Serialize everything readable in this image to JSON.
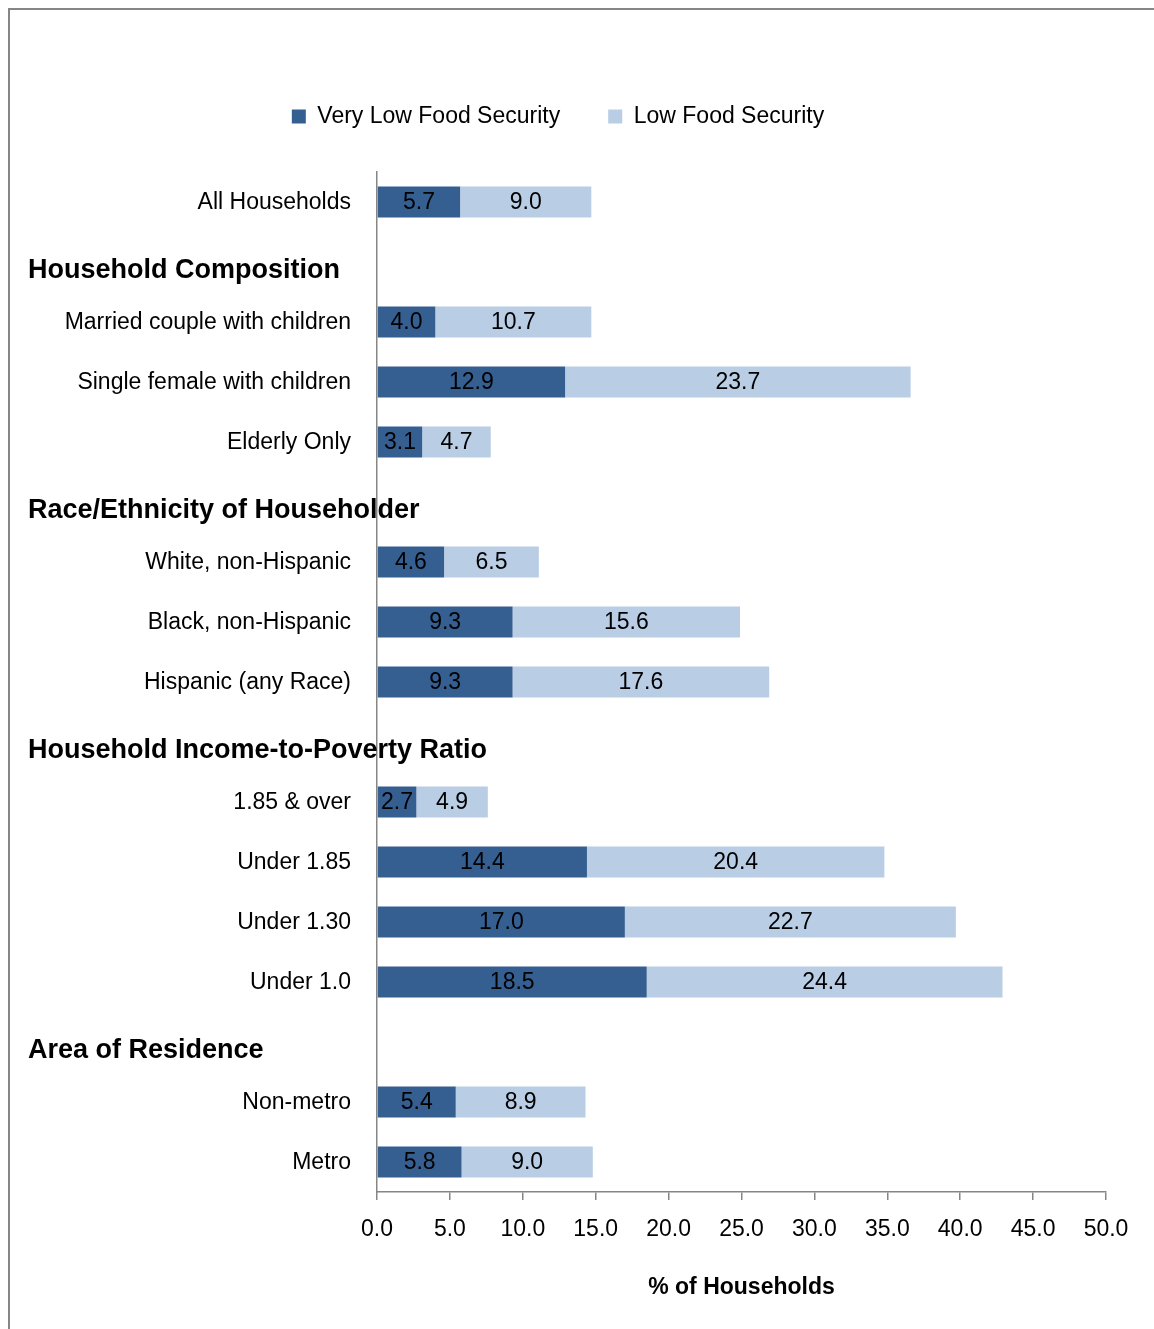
{
  "chart_data": {
    "type": "bar",
    "orientation": "horizontal",
    "stacked": true,
    "categories": [
      "All Households",
      null,
      "Married couple with children",
      "Single female with children",
      "Elderly Only",
      null,
      "White, non-Hispanic",
      "Black, non-Hispanic",
      "Hispanic (any Race)",
      null,
      "1.85 & over",
      "Under 1.85",
      "Under 1.30",
      "Under 1.0",
      null,
      "Non-metro",
      "Metro"
    ],
    "annotations": [
      "Household Composition",
      "Race/Ethnicity of Householder",
      "Household Income-to-Poverty Ratio",
      "Area of Residence"
    ],
    "series": [
      {
        "name": "Very Low Food Security",
        "color": "#365f91",
        "values": [
          5.7,
          null,
          4.0,
          12.9,
          3.1,
          null,
          4.6,
          9.3,
          9.3,
          null,
          2.7,
          14.4,
          17.0,
          18.5,
          null,
          5.4,
          5.8
        ],
        "value_labels": [
          "5.7",
          null,
          "4.0",
          "12.9",
          "3.1",
          null,
          "4.6",
          "9.3",
          "9.3",
          null,
          "2.7",
          "14.4",
          "17.0",
          "18.5",
          null,
          "5.4",
          "5.8"
        ]
      },
      {
        "name": "Low Food Security",
        "color": "#b9cde5",
        "values": [
          9.0,
          null,
          10.7,
          23.7,
          4.7,
          null,
          6.5,
          15.6,
          17.6,
          null,
          4.9,
          20.4,
          22.7,
          24.4,
          null,
          8.9,
          9.0
        ],
        "value_labels": [
          "9.0",
          null,
          "10.7",
          "23.7",
          "4.7",
          null,
          "6.5",
          "15.6",
          "17.6",
          null,
          "4.9",
          "20.4",
          "22.7",
          "24.4",
          null,
          "8.9",
          "9.0"
        ]
      }
    ],
    "xlim": [
      0,
      50
    ],
    "xticks": [
      {
        "value": 0,
        "label": "0.0"
      },
      {
        "value": 5,
        "label": "5.0"
      },
      {
        "value": 10,
        "label": "10.0"
      },
      {
        "value": 15,
        "label": "15.0"
      },
      {
        "value": 20,
        "label": "20.0"
      },
      {
        "value": 25,
        "label": "25.0"
      },
      {
        "value": 30,
        "label": "30.0"
      },
      {
        "value": 35,
        "label": "35.0"
      },
      {
        "value": 40,
        "label": "40.0"
      },
      {
        "value": 45,
        "label": "45.0"
      },
      {
        "value": 50,
        "label": "50.0"
      }
    ],
    "xlabel": "% of Households",
    "grid": false,
    "legend": "top"
  }
}
